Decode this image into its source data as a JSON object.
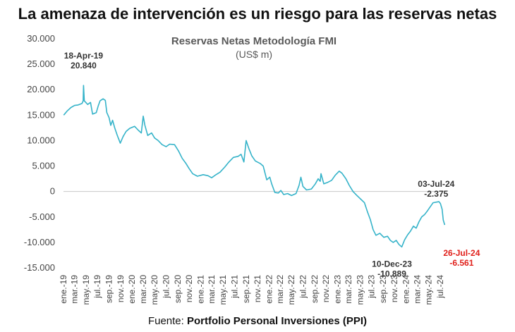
{
  "headline": "La amenaza de intervención es un riesgo para las reservas netas",
  "source": {
    "prefix": "Fuente: ",
    "name": "Portfolio Personal Inversiones (PPI)"
  },
  "colors": {
    "line": "#35b3c9",
    "annotation": "#333333",
    "annotation_highlight": "#e0201b"
  },
  "chart_data": {
    "type": "line",
    "title": "Reservas Netas Metodología FMI",
    "subtitle": "(US$ m)",
    "ylim": [
      -15000,
      30000
    ],
    "y_ticks": [
      -15000,
      -10000,
      -5000,
      0,
      5000,
      10000,
      15000,
      20000,
      25000,
      30000
    ],
    "y_tick_labels": [
      "-15.000",
      "-10.000",
      "-5.000",
      "0",
      "5.000",
      "10.000",
      "15.000",
      "20.000",
      "25.000",
      "30.000"
    ],
    "x_range": [
      "2019-01",
      "2024-08"
    ],
    "x_ticks": [
      "2019-01",
      "2019-03",
      "2019-05",
      "2019-07",
      "2019-09",
      "2019-11",
      "2020-01",
      "2020-03",
      "2020-05",
      "2020-07",
      "2020-09",
      "2020-11",
      "2021-01",
      "2021-03",
      "2021-05",
      "2021-07",
      "2021-09",
      "2021-11",
      "2022-01",
      "2022-03",
      "2022-05",
      "2022-07",
      "2022-09",
      "2022-11",
      "2023-01",
      "2023-03",
      "2023-05",
      "2023-07",
      "2023-09",
      "2023-11",
      "2024-01",
      "2024-03",
      "2024-05",
      "2024-07"
    ],
    "x_tick_labels": [
      "ene.-19",
      "mar.-19",
      "may.-19",
      "jul.-19",
      "sep.-19",
      "nov.-19",
      "ene.-20",
      "mar.-20",
      "may.-20",
      "jul.-20",
      "sep.-20",
      "nov.-20",
      "ene.-21",
      "mar.-21",
      "may.-21",
      "jul.-21",
      "sep.-21",
      "nov.-21",
      "ene.-22",
      "mar.-22",
      "may.-22",
      "jul.-22",
      "sep.-22",
      "nov.-22",
      "ene.-23",
      "mar.-23",
      "may.-23",
      "jul.-23",
      "sep.-23",
      "nov.-23",
      "ene.-24",
      "mar.-24",
      "may.-24",
      "jul.-24"
    ],
    "series": [
      {
        "points": [
          [
            "2019-01-02",
            15000
          ],
          [
            "2019-01-20",
            15800
          ],
          [
            "2019-02-10",
            16500
          ],
          [
            "2019-03-01",
            16900
          ],
          [
            "2019-03-20",
            17000
          ],
          [
            "2019-04-10",
            17300
          ],
          [
            "2019-04-16",
            17800
          ],
          [
            "2019-04-18",
            20840
          ],
          [
            "2019-04-22",
            17800
          ],
          [
            "2019-05-10",
            17100
          ],
          [
            "2019-05-25",
            17500
          ],
          [
            "2019-06-05",
            15200
          ],
          [
            "2019-06-25",
            15500
          ],
          [
            "2019-07-05",
            16800
          ],
          [
            "2019-07-15",
            17800
          ],
          [
            "2019-07-31",
            18200
          ],
          [
            "2019-08-12",
            17900
          ],
          [
            "2019-08-20",
            15500
          ],
          [
            "2019-09-01",
            14500
          ],
          [
            "2019-09-10",
            13000
          ],
          [
            "2019-09-20",
            14000
          ],
          [
            "2019-10-01",
            12500
          ],
          [
            "2019-10-15",
            11000
          ],
          [
            "2019-10-31",
            9500
          ],
          [
            "2019-11-15",
            10800
          ],
          [
            "2019-12-01",
            11800
          ],
          [
            "2019-12-20",
            12400
          ],
          [
            "2020-01-15",
            12800
          ],
          [
            "2020-02-05",
            12000
          ],
          [
            "2020-02-20",
            11500
          ],
          [
            "2020-03-01",
            14800
          ],
          [
            "2020-03-10",
            13000
          ],
          [
            "2020-03-25",
            11000
          ],
          [
            "2020-04-15",
            11500
          ],
          [
            "2020-05-01",
            10500
          ],
          [
            "2020-05-20",
            10000
          ],
          [
            "2020-06-10",
            9200
          ],
          [
            "2020-07-01",
            8800
          ],
          [
            "2020-07-20",
            9300
          ],
          [
            "2020-08-15",
            9200
          ],
          [
            "2020-09-05",
            8000
          ],
          [
            "2020-09-25",
            6500
          ],
          [
            "2020-10-15",
            5500
          ],
          [
            "2020-11-01",
            4500
          ],
          [
            "2020-11-20",
            3500
          ],
          [
            "2020-12-15",
            3000
          ],
          [
            "2021-01-15",
            3300
          ],
          [
            "2021-02-10",
            3100
          ],
          [
            "2021-03-01",
            2700
          ],
          [
            "2021-03-20",
            3200
          ],
          [
            "2021-04-15",
            3800
          ],
          [
            "2021-05-10",
            4800
          ],
          [
            "2021-06-01",
            5800
          ],
          [
            "2021-06-25",
            6700
          ],
          [
            "2021-07-20",
            6900
          ],
          [
            "2021-08-05",
            7300
          ],
          [
            "2021-08-20",
            5800
          ],
          [
            "2021-09-01",
            10000
          ],
          [
            "2021-09-15",
            8500
          ],
          [
            "2021-10-01",
            7000
          ],
          [
            "2021-10-20",
            6000
          ],
          [
            "2021-11-15",
            5500
          ],
          [
            "2021-12-01",
            5000
          ],
          [
            "2021-12-20",
            2300
          ],
          [
            "2022-01-05",
            2800
          ],
          [
            "2022-01-15",
            1500
          ],
          [
            "2022-02-01",
            -200
          ],
          [
            "2022-02-20",
            -300
          ],
          [
            "2022-03-05",
            200
          ],
          [
            "2022-03-20",
            -600
          ],
          [
            "2022-04-10",
            -400
          ],
          [
            "2022-05-01",
            -800
          ],
          [
            "2022-05-25",
            -400
          ],
          [
            "2022-06-10",
            1200
          ],
          [
            "2022-06-20",
            2800
          ],
          [
            "2022-07-01",
            1000
          ],
          [
            "2022-07-20",
            300
          ],
          [
            "2022-08-15",
            500
          ],
          [
            "2022-09-05",
            1500
          ],
          [
            "2022-09-20",
            2500
          ],
          [
            "2022-10-01",
            2000
          ],
          [
            "2022-10-05",
            3500
          ],
          [
            "2022-10-20",
            1500
          ],
          [
            "2022-11-10",
            1800
          ],
          [
            "2022-12-01",
            2200
          ],
          [
            "2022-12-20",
            3200
          ],
          [
            "2023-01-10",
            4000
          ],
          [
            "2023-01-25",
            3600
          ],
          [
            "2023-02-15",
            2500
          ],
          [
            "2023-03-05",
            1200
          ],
          [
            "2023-03-25",
            0
          ],
          [
            "2023-04-15",
            -800
          ],
          [
            "2023-05-05",
            -1500
          ],
          [
            "2023-05-25",
            -2200
          ],
          [
            "2023-06-10",
            -4000
          ],
          [
            "2023-06-25",
            -5500
          ],
          [
            "2023-07-10",
            -7500
          ],
          [
            "2023-07-25",
            -8600
          ],
          [
            "2023-08-15",
            -8200
          ],
          [
            "2023-09-05",
            -9000
          ],
          [
            "2023-09-25",
            -8800
          ],
          [
            "2023-10-10",
            -9600
          ],
          [
            "2023-10-25",
            -10000
          ],
          [
            "2023-11-10",
            -9600
          ],
          [
            "2023-11-25",
            -10400
          ],
          [
            "2023-12-10",
            -10889
          ],
          [
            "2023-12-25",
            -9500
          ],
          [
            "2024-01-10",
            -8500
          ],
          [
            "2024-01-25",
            -7800
          ],
          [
            "2024-02-10",
            -6800
          ],
          [
            "2024-02-25",
            -7200
          ],
          [
            "2024-03-10",
            -6000
          ],
          [
            "2024-03-25",
            -5000
          ],
          [
            "2024-04-10",
            -4500
          ],
          [
            "2024-04-25",
            -3800
          ],
          [
            "2024-05-10",
            -3000
          ],
          [
            "2024-05-25",
            -2200
          ],
          [
            "2024-06-10",
            -2100
          ],
          [
            "2024-06-25",
            -2000
          ],
          [
            "2024-07-03",
            -2375
          ],
          [
            "2024-07-12",
            -3500
          ],
          [
            "2024-07-18",
            -5600
          ],
          [
            "2024-07-26",
            -6561
          ]
        ]
      }
    ],
    "annotations": [
      {
        "date": "2019-04-18",
        "value": 20840,
        "date_label": "18-Apr-19",
        "value_label": "20.840",
        "style": "normal"
      },
      {
        "date": "2024-07-03",
        "value": -2375,
        "date_label": "03-Jul-24",
        "value_label": "-2.375",
        "style": "normal"
      },
      {
        "date": "2024-07-26",
        "value": -6561,
        "date_label": "26-Jul-24",
        "value_label": "-6.561",
        "style": "highlight"
      },
      {
        "date": "2023-12-10",
        "value": -10889,
        "date_label": "10-Dec-23",
        "value_label": "-10.889",
        "style": "normal"
      }
    ]
  }
}
